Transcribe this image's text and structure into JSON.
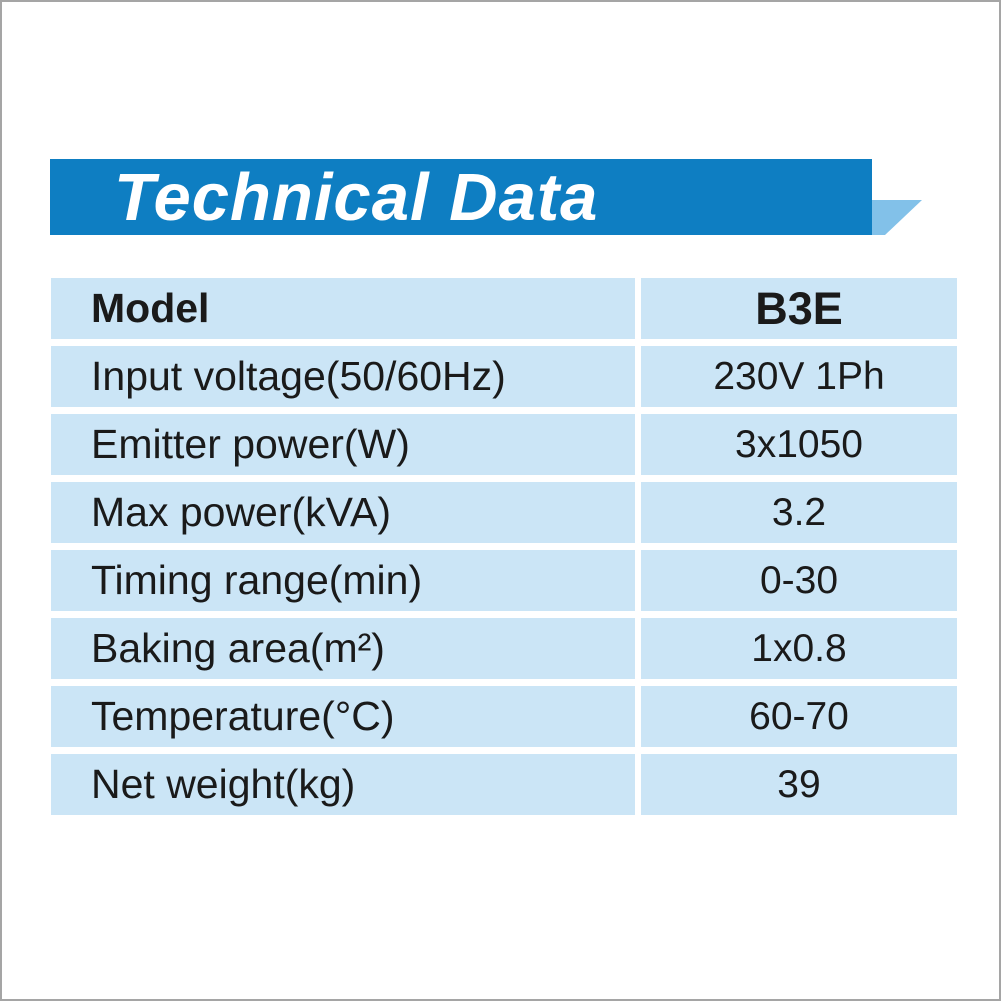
{
  "page": {
    "background_color": "#ffffff",
    "frame_border_color": "#a5a5a5"
  },
  "banner": {
    "title": "Technical Data",
    "background_color": "#0e7ec2",
    "text_color": "#ffffff",
    "flag_color": "#82c1e9"
  },
  "table": {
    "cell_background_color": "#cbe5f6",
    "text_color": "#1a1a1a",
    "rows": [
      {
        "label": "Model",
        "value": "B3E"
      },
      {
        "label": "Input voltage(50/60Hz)",
        "value": "230V 1Ph"
      },
      {
        "label": "Emitter power(W)",
        "value": "3x1050"
      },
      {
        "label": "Max power(kVA)",
        "value": "3.2"
      },
      {
        "label": "Timing range(min)",
        "value": "0-30"
      },
      {
        "label": "Baking area(m²)",
        "value": "1x0.8"
      },
      {
        "label": "Temperature(°C)",
        "value": "60-70"
      },
      {
        "label": "Net weight(kg)",
        "value": "39"
      }
    ]
  }
}
